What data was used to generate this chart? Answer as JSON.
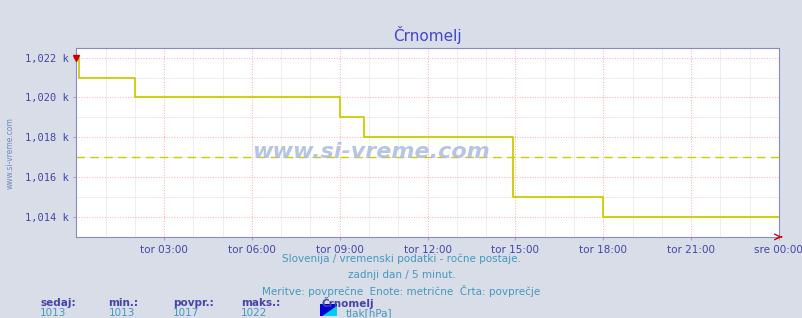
{
  "title": "Črnomelj",
  "title_color": "#4444cc",
  "bg_color": "#d8dde8",
  "plot_bg_color": "#ffffff",
  "grid_color_major": "#ffaaaa",
  "grid_color_minor": "#e8e8e8",
  "line_color": "#cccc00",
  "avg_value": 1017.0,
  "avg_line_color": "#cccc00",
  "ymin": 1013.0,
  "ymax": 1022.0,
  "ylim_min": 1013.0,
  "ylim_max": 1022.5,
  "yticks": [
    1014,
    1016,
    1018,
    1020,
    1022
  ],
  "xtick_color": "#4444aa",
  "ytick_color": "#4444aa",
  "spine_color": "#8888cc",
  "watermark": "www.si-vreme.com",
  "watermark_color": "#aabbdd",
  "footer_line1": "Slovenija / vremenski podatki - ročne postaje.",
  "footer_line2": "zadnji dan / 5 minut.",
  "footer_line3": "Meritve: povprečne  Enote: metrične  Črta: povprečje",
  "footer_color": "#4499bb",
  "legend_labels": [
    "sedaj:",
    "min.:",
    "povpr.:",
    "maks.:"
  ],
  "legend_values": [
    "1013",
    "1013",
    "1017",
    "1022"
  ],
  "legend_series_name": "Črnomelj",
  "legend_unit": "tlak[hPa]",
  "legend_color": "#4499bb",
  "legend_label_color": "#4444aa",
  "xtick_labels": [
    "tor 03:00",
    "tor 06:00",
    "tor 09:00",
    "tor 12:00",
    "tor 15:00",
    "tor 18:00",
    "tor 21:00",
    "sre 00:00"
  ],
  "data_x": [
    0.0,
    0.004,
    0.004,
    0.083,
    0.083,
    0.09,
    0.09,
    0.375,
    0.375,
    0.41,
    0.41,
    0.46,
    0.46,
    0.5,
    0.5,
    0.622,
    0.622,
    0.75,
    0.75,
    0.82,
    0.82,
    1.0
  ],
  "data_y": [
    1022,
    1022,
    1021,
    1021,
    1020,
    1020,
    1020,
    1020,
    1019,
    1019,
    1018,
    1018,
    1018,
    1018,
    1018,
    1018,
    1015,
    1015,
    1014,
    1014,
    1014,
    1014
  ]
}
